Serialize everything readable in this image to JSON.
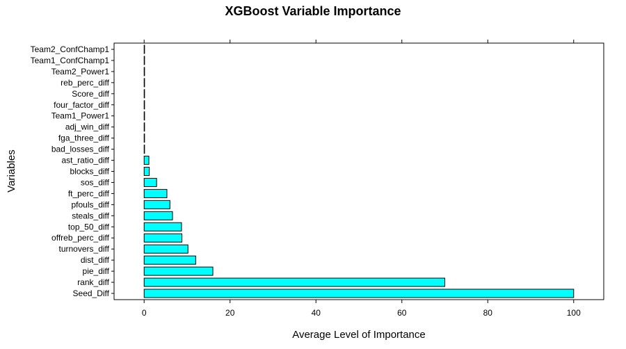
{
  "chart_data": {
    "type": "bar",
    "orientation": "horizontal",
    "title": "XGBoost Variable Importance",
    "xlabel": "Average Level of Importance",
    "ylabel": "Variables",
    "xlim": [
      -7,
      107
    ],
    "x_ticks": [
      0,
      20,
      40,
      60,
      80,
      100
    ],
    "bar_color": "#00FFFF",
    "bar_edge_color": "#000000",
    "grid": false,
    "categories": [
      "Seed_Diff",
      "rank_diff",
      "pie_diff",
      "dist_diff",
      "turnovers_diff",
      "offreb_perc_diff",
      "top_50_diff",
      "steals_diff",
      "pfouls_diff",
      "ft_perc_diff",
      "sos_diff",
      "blocks_diff",
      "ast_ratio_diff",
      "bad_losses_diff",
      "fga_three_diff",
      "adj_win_diff",
      "Team1_Power1",
      "four_factor_diff",
      "Score_diff",
      "reb_perc_diff",
      "Team2_Power1",
      "Team1_ConfChamp1",
      "Team2_ConfChamp1"
    ],
    "values": [
      100,
      70,
      16,
      12,
      10.2,
      8.8,
      8.7,
      6.6,
      6.0,
      5.3,
      2.9,
      1.2,
      1.1,
      0.1,
      0.1,
      0.1,
      0.1,
      0.1,
      0.1,
      0.1,
      0.1,
      0.1,
      0.1
    ]
  }
}
